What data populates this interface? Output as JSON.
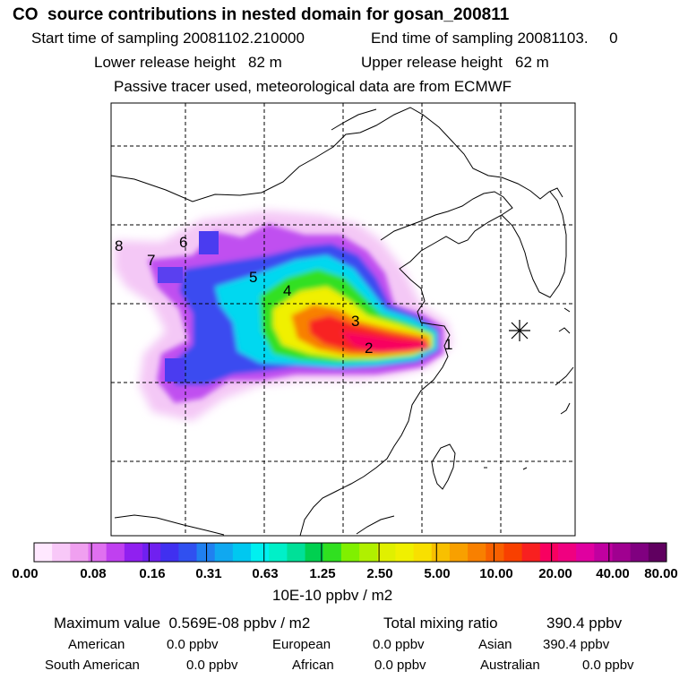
{
  "header": {
    "title": "CO  source contributions in nested domain for gosan_200811",
    "start": "Start time of sampling 20081102.210000",
    "end": "End time of sampling 20081103.     0",
    "lower": "Lower release height   82 m",
    "upper": "Upper release height   62 m",
    "tracer": "Passive tracer used, meteorological data are from ECMWF"
  },
  "map": {
    "markers": [
      {
        "label": "1"
      },
      {
        "label": "2"
      },
      {
        "label": "3"
      },
      {
        "label": "4"
      },
      {
        "label": "5"
      },
      {
        "label": "6"
      },
      {
        "label": "7"
      },
      {
        "label": "8"
      }
    ],
    "receptor_icon": "asterisk-icon"
  },
  "colorbar": {
    "ticks": [
      "0.00",
      "0.08",
      "0.16",
      "0.31",
      "0.63",
      "1.25",
      "2.50",
      "5.00",
      "10.00",
      "20.00",
      "40.00",
      "80.00"
    ],
    "units": "10E-10 ppbv / m2",
    "colors": [
      "#ffe8ff",
      "#f8c8f8",
      "#f0a0f0",
      "#e070f0",
      "#c040f0",
      "#9020f0",
      "#7020f0",
      "#4030f0",
      "#3050f0",
      "#2080f0",
      "#10a8f0",
      "#00c8f0",
      "#00f0f0",
      "#00f0c8",
      "#00e098",
      "#00d050",
      "#30e020",
      "#80f000",
      "#b0f000",
      "#e0f000",
      "#f0f000",
      "#f8e000",
      "#f8c000",
      "#f8a000",
      "#f88000",
      "#f86000",
      "#f84000",
      "#f82020",
      "#f80060",
      "#f00080",
      "#e000a0",
      "#c000a0",
      "#a00090",
      "#800080",
      "#600060"
    ]
  },
  "stats": {
    "max": "Maximum value  0.569E-08 ppbv / m2",
    "total_label": "Total mixing ratio",
    "total_value": "390.4 ppbv",
    "american_label": "American",
    "american_value": "0.0 ppbv",
    "european_label": "European",
    "european_value": "0.0 ppbv",
    "asian_label": "Asian",
    "asian_value": "390.4 ppbv",
    "south_american_label": "South American",
    "south_american_value": "0.0 ppbv",
    "african_label": "African",
    "african_value": "0.0 ppbv",
    "australian_label": "Australian",
    "australian_value": "0.0 ppbv"
  }
}
